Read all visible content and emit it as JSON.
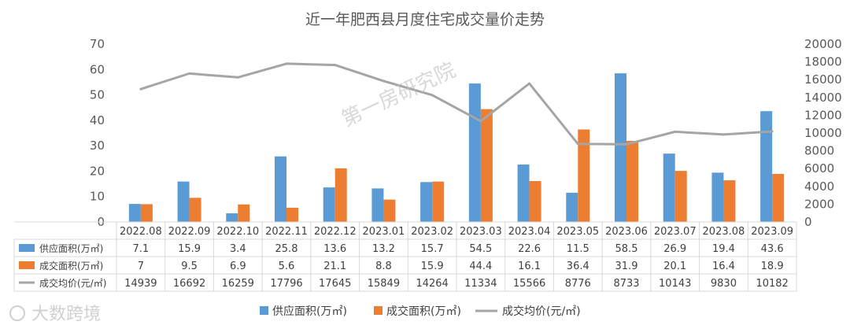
{
  "chart_data": {
    "type": "bar",
    "title": "近一年肥西县月度住宅成交量价走势",
    "categories": [
      "2022.08",
      "2022.09",
      "2022.10",
      "2022.11",
      "2022.12",
      "2023.01",
      "2023.02",
      "2023.03",
      "2023.04",
      "2023.05",
      "2023.06",
      "2023.07",
      "2023.08",
      "2023.09"
    ],
    "series": [
      {
        "name": "供应面积(万㎡)",
        "type": "bar",
        "axis": "left",
        "color": "#5b9bd5",
        "values": [
          7.1,
          15.9,
          3.4,
          25.8,
          13.6,
          13.2,
          15.7,
          54.5,
          22.6,
          11.5,
          58.5,
          26.9,
          19.4,
          43.6
        ]
      },
      {
        "name": "成交面积(万㎡)",
        "type": "bar",
        "axis": "left",
        "color": "#ed7d31",
        "values": [
          7,
          9.5,
          6.9,
          5.6,
          21.1,
          8.8,
          15.9,
          44.4,
          16.1,
          36.4,
          31.9,
          20.1,
          16.4,
          18.9
        ]
      },
      {
        "name": "成交均价(元/㎡)",
        "type": "line",
        "axis": "right",
        "color": "#a5a5a5",
        "values": [
          14939,
          16692,
          16259,
          17796,
          17645,
          15849,
          14264,
          11334,
          15566,
          8776,
          8733,
          10143,
          9830,
          10182
        ]
      }
    ],
    "y_left": {
      "min": 0,
      "max": 70,
      "ticks": [
        0,
        10,
        20,
        30,
        40,
        50,
        60,
        70
      ]
    },
    "y_right": {
      "min": 0,
      "max": 20000,
      "ticks": [
        0,
        2000,
        4000,
        6000,
        8000,
        10000,
        12000,
        14000,
        16000,
        18000,
        20000
      ]
    },
    "grid": false,
    "legend_position": "bottom",
    "data_table": true
  },
  "watermarks": {
    "center": "第一房研究院",
    "corner": "大数跨境"
  }
}
